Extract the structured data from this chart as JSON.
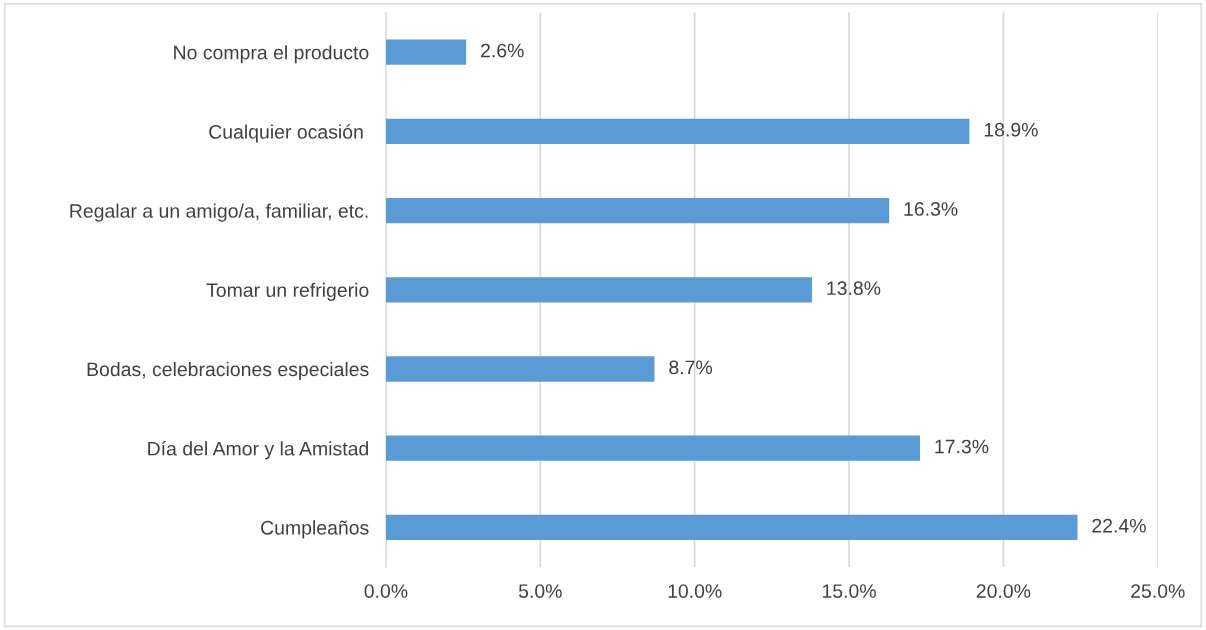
{
  "chart_data": {
    "type": "bar",
    "orientation": "horizontal",
    "categories": [
      "No compra el producto",
      "Cualquier ocasión ",
      "Regalar a un amigo/a, familiar, etc.",
      "Tomar un refrigerio",
      "Bodas, celebraciones especiales",
      "Día del Amor y la Amistad",
      "Cumpleaños"
    ],
    "values": [
      2.6,
      18.9,
      16.3,
      13.8,
      8.7,
      17.3,
      22.4
    ],
    "value_labels": [
      "2.6%",
      "18.9%",
      "16.3%",
      "13.8%",
      "8.7%",
      "17.3%",
      "22.4%"
    ],
    "color": "#5b9bd5",
    "xlim": [
      0,
      25
    ],
    "xticks": [
      {
        "value": 0,
        "label": "0.0%"
      },
      {
        "value": 5,
        "label": "5.0%"
      },
      {
        "value": 10,
        "label": "10.0%"
      },
      {
        "value": 15,
        "label": "15.0%"
      },
      {
        "value": 20,
        "label": "20.0%"
      },
      {
        "value": 25,
        "label": "25.0%"
      }
    ],
    "grid": "x",
    "legend": false
  }
}
